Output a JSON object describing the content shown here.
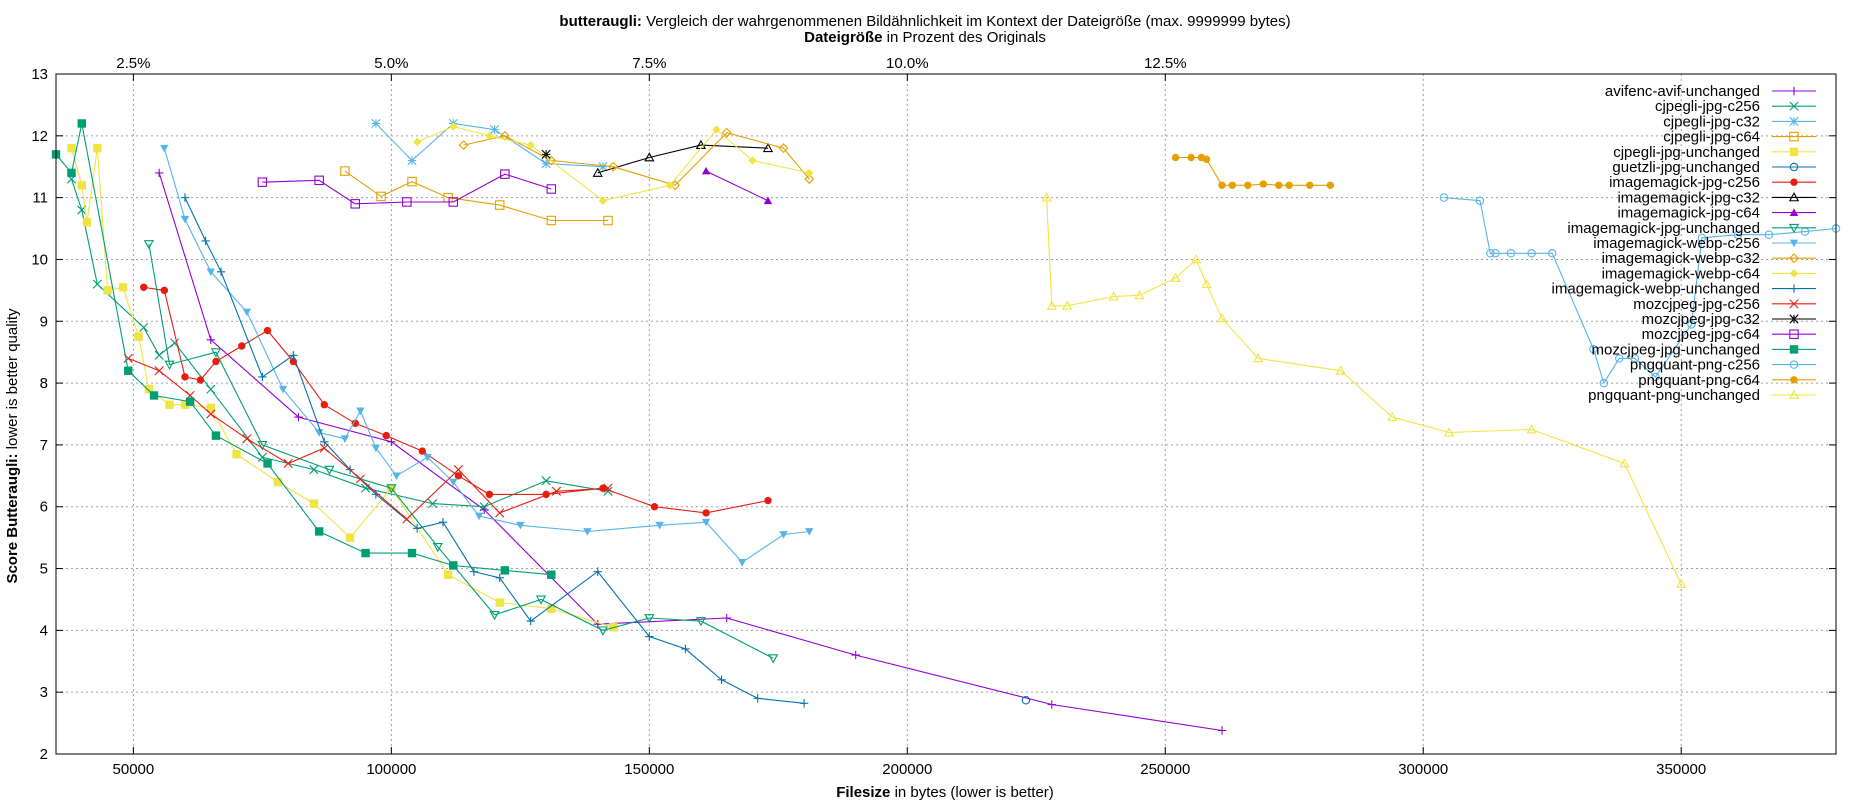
{
  "chart_data": {
    "type": "line",
    "title_bold": "butteraugli:",
    "title_rest": " Vergleich der wahrgenommenen Bildähnlichkeit im Kontext der Dateigröße (max. 9999999 bytes)",
    "x2label_bold": "Dateigröße",
    "x2label_rest": " in Prozent des Originals",
    "xlabel_bold": "Filesize",
    "xlabel_rest": " in bytes (lower is better)",
    "ylabel_bold": "Score Butteraugli:",
    "ylabel_rest": " lower is better quality",
    "xlim": [
      35000,
      380000
    ],
    "ylim": [
      2,
      13
    ],
    "xticks": [
      50000,
      100000,
      150000,
      200000,
      250000,
      300000,
      350000
    ],
    "xtick_labels": [
      "50000",
      "100000",
      "150000",
      "200000",
      "250000",
      "300000",
      "350000"
    ],
    "yticks": [
      2,
      3,
      4,
      5,
      6,
      7,
      8,
      9,
      10,
      11,
      12,
      13
    ],
    "ytick_labels": [
      "2",
      "3",
      "4",
      "5",
      "6",
      "7",
      "8",
      "9",
      "10",
      "11",
      "12",
      "13"
    ],
    "x2ticks": [
      2.5,
      5.0,
      7.5,
      10.0,
      12.5
    ],
    "x2tick_labels": [
      "2.5%",
      "5.0%",
      "7.5%",
      "10.0%",
      "12.5%"
    ],
    "x2_bytes_per_percent": 20000,
    "x2_offset": 0,
    "grid": true,
    "legend_position": "top-right",
    "series": [
      {
        "name": "avifenc-avif-unchanged",
        "color": "#9400d3",
        "marker": "plus",
        "x": [
          55000,
          65000,
          82000,
          100000,
          118000,
          140000,
          165000,
          190000,
          228000,
          261000
        ],
        "y": [
          11.4,
          8.7,
          7.45,
          7.05,
          5.95,
          4.1,
          4.2,
          3.6,
          2.8,
          2.38
        ]
      },
      {
        "name": "cjpegli-jpg-c256",
        "color": "#009e73",
        "marker": "x",
        "x": [
          38000,
          40000,
          43000,
          52000,
          55000,
          58000,
          65000,
          75000,
          85000,
          95000,
          108000,
          118000,
          130000,
          142000
        ],
        "y": [
          11.3,
          10.8,
          9.6,
          8.9,
          8.45,
          8.65,
          7.9,
          6.8,
          6.6,
          6.3,
          6.05,
          6.0,
          6.42,
          6.25
        ]
      },
      {
        "name": "cjpegli-jpg-c32",
        "color": "#56b4e9",
        "marker": "star",
        "x": [
          97000,
          104000,
          112000,
          120000,
          130000,
          141000
        ],
        "y": [
          12.2,
          11.6,
          12.2,
          12.1,
          11.55,
          11.5
        ]
      },
      {
        "name": "cjpegli-jpg-c64",
        "color": "#e69f00",
        "marker": "square",
        "x": [
          91000,
          98000,
          104000,
          111000,
          121000,
          131000,
          142000
        ],
        "y": [
          11.43,
          11.02,
          11.26,
          11.0,
          10.88,
          10.63,
          10.63
        ]
      },
      {
        "name": "cjpegli-jpg-unchanged",
        "color": "#f0e442",
        "marker": "fsquare",
        "x": [
          38000,
          40000,
          41000,
          43000,
          45000,
          48000,
          51000,
          53000,
          57000,
          60000,
          65000,
          70000,
          78000,
          85000,
          92000,
          100000,
          111000,
          121000,
          131000,
          143000
        ],
        "y": [
          11.8,
          11.2,
          10.6,
          11.8,
          9.5,
          9.55,
          8.75,
          7.9,
          7.65,
          7.65,
          7.6,
          6.85,
          6.4,
          6.05,
          5.5,
          6.3,
          4.9,
          4.45,
          4.35,
          4.05
        ]
      },
      {
        "name": "guetzli-jpg-unchanged",
        "color": "#0072b2",
        "marker": "circle",
        "x": [
          223000
        ],
        "y": [
          2.87
        ]
      },
      {
        "name": "imagemagick-jpg-c256",
        "color": "#e51e10",
        "marker": "fcircle",
        "x": [
          52000,
          56000,
          60000,
          63000,
          66000,
          71000,
          76000,
          81000,
          87000,
          93000,
          99000,
          106000,
          113000,
          119000,
          130000,
          141000,
          151000,
          161000,
          173000
        ],
        "y": [
          9.55,
          9.5,
          8.1,
          8.05,
          8.35,
          8.6,
          8.85,
          8.35,
          7.65,
          7.35,
          7.15,
          6.9,
          6.5,
          6.2,
          6.2,
          6.3,
          6.0,
          5.9,
          6.1
        ]
      },
      {
        "name": "imagemagick-jpg-c32",
        "color": "#000000",
        "marker": "triangle",
        "x": [
          140000,
          150000,
          160000,
          173000
        ],
        "y": [
          11.4,
          11.65,
          11.85,
          11.8
        ]
      },
      {
        "name": "imagemagick-jpg-c64",
        "color": "#9400d3",
        "marker": "ftriangle",
        "x": [
          161000,
          173000
        ],
        "y": [
          11.43,
          10.95
        ]
      },
      {
        "name": "imagemagick-jpg-unchanged",
        "color": "#009e73",
        "marker": "itriangle",
        "x": [
          53000,
          57000,
          66000,
          75000,
          88000,
          100000,
          109000,
          120000,
          129000,
          141000,
          150000,
          160000,
          174000
        ],
        "y": [
          10.25,
          8.3,
          8.5,
          7.0,
          6.6,
          6.3,
          5.35,
          4.25,
          4.5,
          4.0,
          4.2,
          4.15,
          3.55
        ]
      },
      {
        "name": "imagemagick-webp-c256",
        "color": "#56b4e9",
        "marker": "fitriangle",
        "x": [
          56000,
          60000,
          65000,
          72000,
          79000,
          86000,
          91000,
          94000,
          97000,
          101000,
          107000,
          112000,
          117000,
          125000,
          138000,
          152000,
          161000,
          168000,
          176000,
          181000
        ],
        "y": [
          11.8,
          10.65,
          9.8,
          9.15,
          7.9,
          7.2,
          7.1,
          7.55,
          6.95,
          6.5,
          6.8,
          6.4,
          5.85,
          5.7,
          5.6,
          5.7,
          5.75,
          5.1,
          5.55,
          5.6
        ]
      },
      {
        "name": "imagemagick-webp-c32",
        "color": "#e69f00",
        "marker": "diamond",
        "x": [
          114000,
          122000,
          131000,
          143000,
          155000,
          165000,
          176000,
          181000
        ],
        "y": [
          11.85,
          12.0,
          11.6,
          11.5,
          11.2,
          12.05,
          11.8,
          11.3
        ]
      },
      {
        "name": "imagemagick-webp-c64",
        "color": "#f0e442",
        "marker": "fdiamond",
        "x": [
          105000,
          112000,
          119000,
          127000,
          141000,
          154000,
          163000,
          170000,
          181000
        ],
        "y": [
          11.9,
          12.15,
          12.0,
          11.85,
          10.95,
          11.2,
          12.1,
          11.6,
          11.4
        ]
      },
      {
        "name": "imagemagick-webp-unchanged",
        "color": "#0072b2",
        "marker": "plus",
        "x": [
          60000,
          64000,
          67000,
          75000,
          81000,
          87000,
          92000,
          97000,
          105000,
          110000,
          116000,
          121000,
          127000,
          140000,
          150000,
          157000,
          164000,
          171000,
          180000
        ],
        "y": [
          11.0,
          10.3,
          9.8,
          8.1,
          8.45,
          7.05,
          6.6,
          6.2,
          5.65,
          5.75,
          4.95,
          4.85,
          4.15,
          4.95,
          3.9,
          3.7,
          3.2,
          2.9,
          2.82
        ]
      },
      {
        "name": "mozcjpeg-jpg-c256",
        "color": "#e51e10",
        "marker": "x",
        "x": [
          49000,
          55000,
          61000,
          65000,
          72000,
          80000,
          87000,
          94000,
          103000,
          113000,
          121000,
          132000,
          142000
        ],
        "y": [
          8.4,
          8.2,
          7.8,
          7.5,
          7.1,
          6.7,
          6.95,
          6.45,
          5.8,
          6.6,
          5.9,
          6.25,
          6.3
        ]
      },
      {
        "name": "mozcjpeg-jpg-c32",
        "color": "#000000",
        "marker": "star",
        "x": [
          130000
        ],
        "y": [
          11.7
        ]
      },
      {
        "name": "mozcjpeg-jpg-c64",
        "color": "#9400d3",
        "marker": "square",
        "x": [
          75000,
          86000,
          93000,
          103000,
          112000,
          122000,
          131000
        ],
        "y": [
          11.25,
          11.28,
          10.9,
          10.93,
          10.93,
          11.38,
          11.14
        ]
      },
      {
        "name": "mozcjpeg-jpg-unchanged",
        "color": "#009e73",
        "marker": "fsquare",
        "x": [
          35000,
          38000,
          40000,
          49000,
          54000,
          61000,
          66000,
          76000,
          86000,
          95000,
          104000,
          112000,
          122000,
          131000
        ],
        "y": [
          11.7,
          11.4,
          12.2,
          8.2,
          7.8,
          7.7,
          7.15,
          6.7,
          5.6,
          5.25,
          5.25,
          5.05,
          4.97,
          4.9
        ]
      },
      {
        "name": "pngquant-png-c256",
        "color": "#56b4e9",
        "marker": "circle",
        "x": [
          304000,
          311000,
          313000,
          314000,
          317000,
          321000,
          325000,
          333000,
          335000,
          338000,
          341000,
          345000,
          352000,
          354000,
          361000,
          367000,
          374000,
          380000
        ],
        "y": [
          11.0,
          10.95,
          10.1,
          10.1,
          10.1,
          10.1,
          10.1,
          8.55,
          8.0,
          8.4,
          8.4,
          8.1,
          8.95,
          10.35,
          10.4,
          10.4,
          10.45,
          10.5
        ]
      },
      {
        "name": "pngquant-png-c64",
        "color": "#e69f00",
        "marker": "fcircle",
        "x": [
          252000,
          255000,
          257000,
          258000,
          261000,
          263000,
          266000,
          269000,
          272000,
          274000,
          278000,
          282000
        ],
        "y": [
          11.65,
          11.65,
          11.65,
          11.62,
          11.2,
          11.2,
          11.2,
          11.22,
          11.2,
          11.2,
          11.2,
          11.2
        ]
      },
      {
        "name": "pngquant-png-unchanged",
        "color": "#f0e442",
        "marker": "triangle",
        "x": [
          227000,
          228000,
          231000,
          240000,
          245000,
          252000,
          256000,
          258000,
          261000,
          268000,
          284000,
          294000,
          305000,
          321000,
          339000,
          350000
        ],
        "y": [
          11.0,
          9.25,
          9.25,
          9.4,
          9.42,
          9.7,
          10.0,
          9.6,
          9.05,
          8.4,
          8.2,
          7.45,
          7.2,
          7.25,
          6.7,
          4.75
        ]
      }
    ]
  }
}
